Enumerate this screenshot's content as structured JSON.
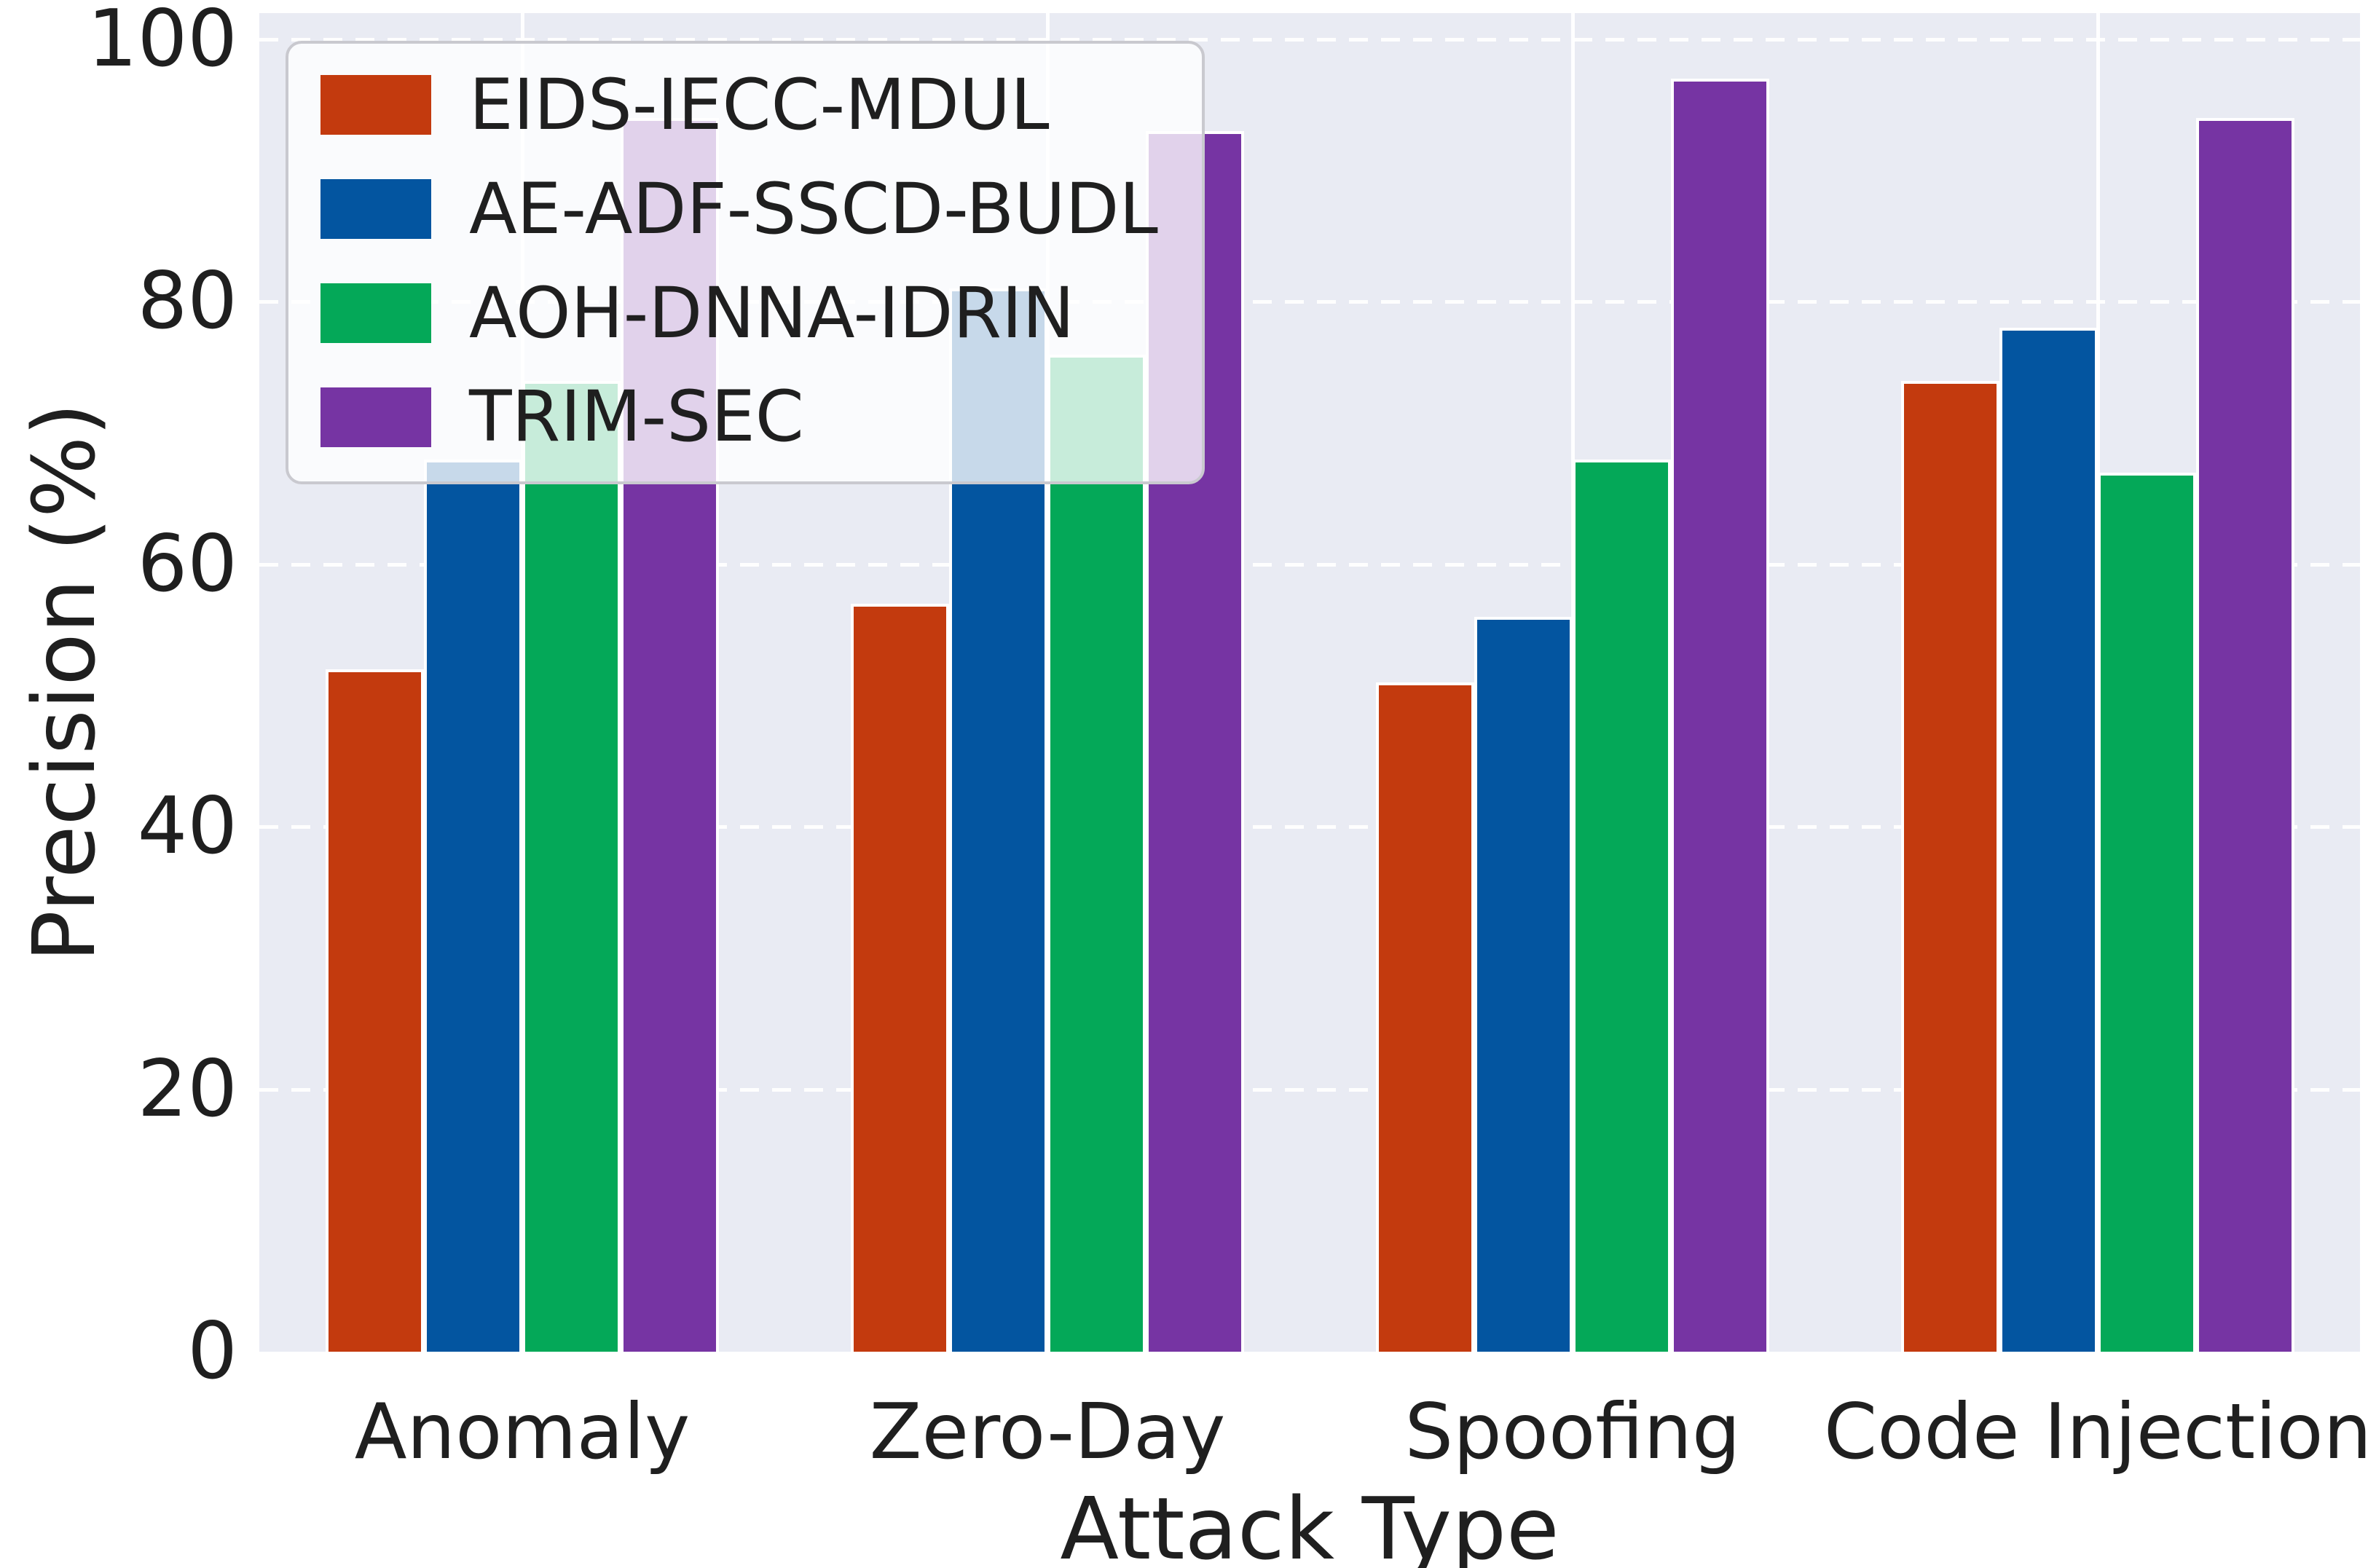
{
  "figure": {
    "background": "#ffffff",
    "plot_background": "#e9ebf3",
    "grid_color": "#ffffff",
    "text_color": "#1f1f1f"
  },
  "legend": {
    "position": "upper-left",
    "background": "rgba(255,255,255,0.78)",
    "border_color": "#c9c9cf"
  },
  "chart_data": {
    "type": "bar",
    "title": "",
    "xlabel": "Attack Type",
    "ylabel": "Precision (%)",
    "categories": [
      "Anomaly",
      "Zero-Day",
      "Spoofing",
      "Code Injection"
    ],
    "series": [
      {
        "name": "EIDS-IECC-MDUL",
        "color": "#c33a0e",
        "values": [
          52,
          57,
          51,
          74
        ]
      },
      {
        "name": "AE-ADF-SSCD-BUDL",
        "color": "#0355a0",
        "values": [
          68,
          81,
          56,
          78
        ]
      },
      {
        "name": "AOH-DNNA-IDRIN",
        "color": "#04a858",
        "values": [
          74,
          76,
          68,
          67
        ]
      },
      {
        "name": "TRIM-SEC",
        "color": "#7634a3",
        "values": [
          94,
          93,
          97,
          94
        ]
      }
    ],
    "ylim": [
      0,
      102
    ],
    "yticks": [
      0,
      20,
      40,
      60,
      80,
      100
    ],
    "grid": "horizontal dashed white, vertical solid white at category centers",
    "legend_position": "upper left"
  }
}
